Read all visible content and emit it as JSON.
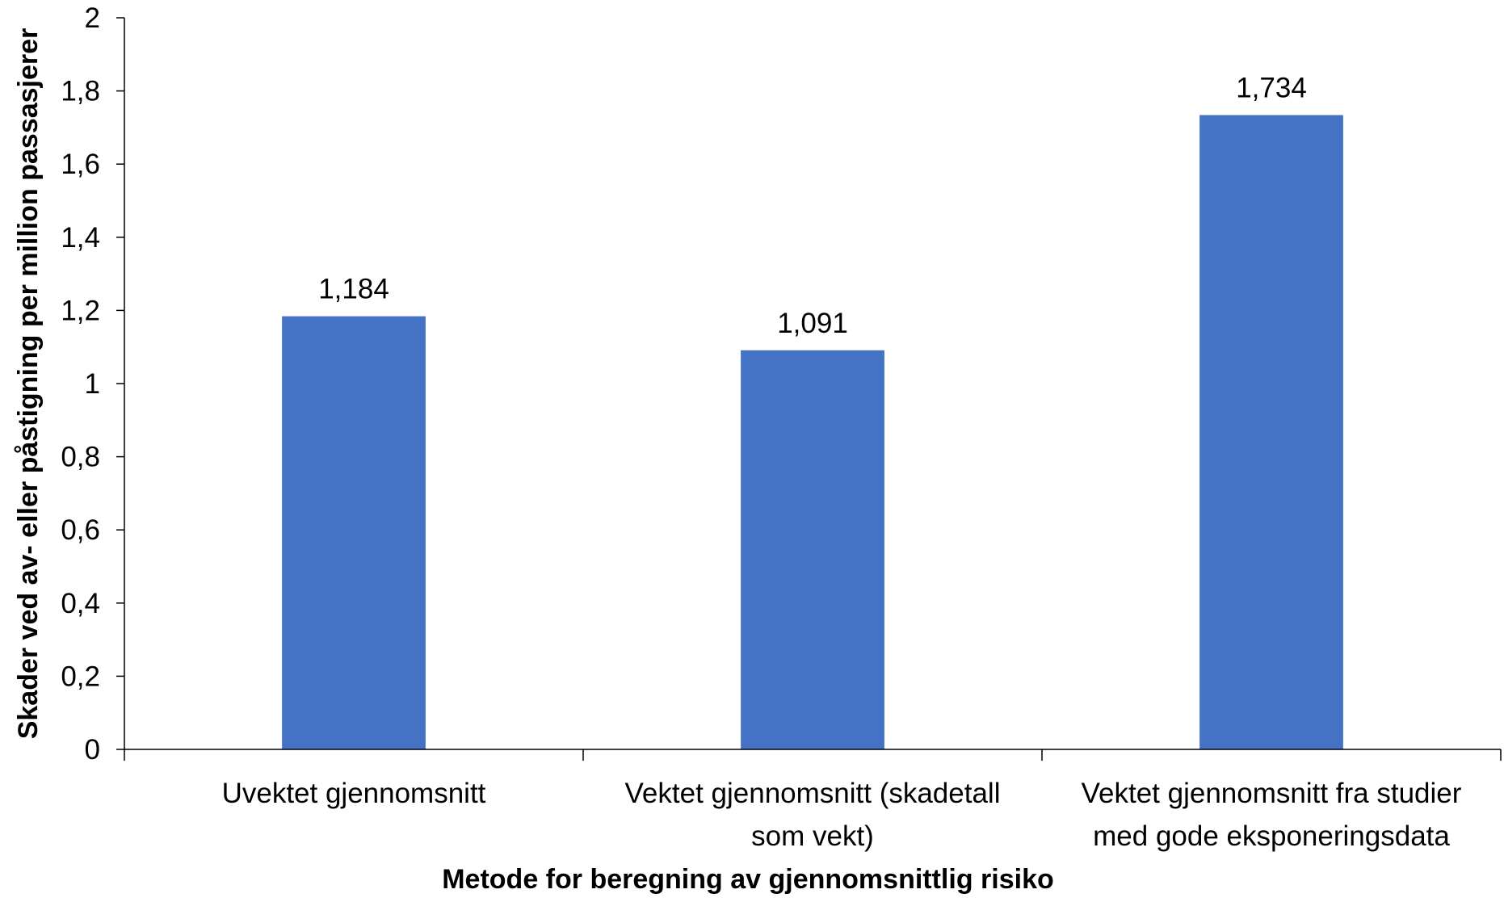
{
  "chart_data": {
    "type": "bar",
    "title": "",
    "xlabel": "Metode for beregning av gjennomsnittlig risiko",
    "ylabel": "Skader ved av- eller påstigning per million passasjerer",
    "categories": [
      [
        "Uvektet gjennomsnitt"
      ],
      [
        "Vektet gjennomsnitt (skadetall",
        "som vekt)"
      ],
      [
        "Vektet gjennomsnitt fra studier",
        "med gode eksponeringsdata"
      ]
    ],
    "values": [
      1.184,
      1.091,
      1.734
    ],
    "data_labels": [
      "1,184",
      "1,091",
      "1,734"
    ],
    "ylim": [
      0,
      2
    ],
    "yticks": [
      0,
      0.2,
      0.4,
      0.6,
      0.8,
      1,
      1.2,
      1.4,
      1.6,
      1.8,
      2
    ],
    "ytick_labels": [
      "0",
      "0,2",
      "0,4",
      "0,6",
      "0,8",
      "1",
      "1,2",
      "1,4",
      "1,6",
      "1,8",
      "2"
    ],
    "grid": false,
    "legend": "none",
    "colors": {
      "bar": "#4472C4",
      "axis": "#000000"
    }
  }
}
